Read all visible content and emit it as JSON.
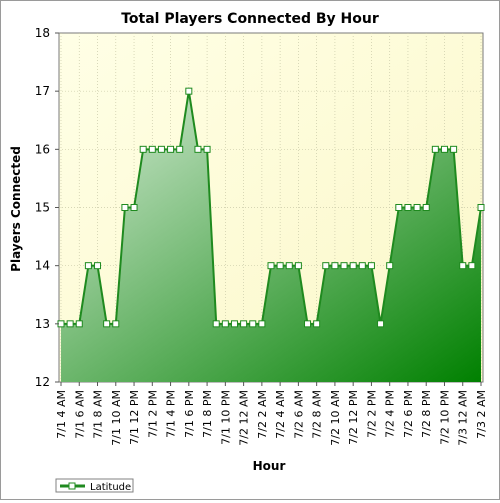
{
  "chart_data": {
    "type": "area",
    "title": "Total Players Connected By Hour",
    "xlabel": "Hour",
    "ylabel": "Players Connected",
    "ylim": [
      12,
      18
    ],
    "yticks": [
      "12",
      "13",
      "14",
      "15",
      "16",
      "17",
      "18"
    ],
    "grid": true,
    "legend_position": "bottom-left",
    "colors": {
      "line": "#1f8a1f",
      "fill_light": "#d8ecd8",
      "fill_dark": "#008000",
      "plot_bg_light": "#ffffe6",
      "plot_bg_dark": "#fbf7c8",
      "marker_fill": "#ffffff"
    },
    "xticklabels": [
      "7/1 4 AM",
      "7/1 6 AM",
      "7/1 8 AM",
      "7/1 10 AM",
      "7/1 12 PM",
      "7/1 2 PM",
      "7/1 4 PM",
      "7/1 6 PM",
      "7/1 8 PM",
      "7/1 10 PM",
      "7/2 12 AM",
      "7/2 2 AM",
      "7/2 4 AM",
      "7/2 6 AM",
      "7/2 8 AM",
      "7/2 10 AM",
      "7/2 12 PM",
      "7/2 2 PM",
      "7/2 4 PM",
      "7/2 6 PM",
      "7/2 8 PM",
      "7/2 10 PM",
      "7/3 12 AM",
      "7/3 2 AM"
    ],
    "series": [
      {
        "name": "Latitude",
        "values": [
          13,
          13,
          13,
          14,
          14,
          13,
          13,
          15,
          15,
          16,
          16,
          16,
          16,
          16,
          17,
          16,
          16,
          13,
          13,
          13,
          13,
          13,
          13,
          14,
          14,
          14,
          14,
          13,
          13,
          14,
          14,
          14,
          14,
          14,
          14,
          13,
          14,
          15,
          15,
          15,
          15,
          16,
          16,
          16,
          14,
          14,
          15
        ]
      }
    ]
  }
}
